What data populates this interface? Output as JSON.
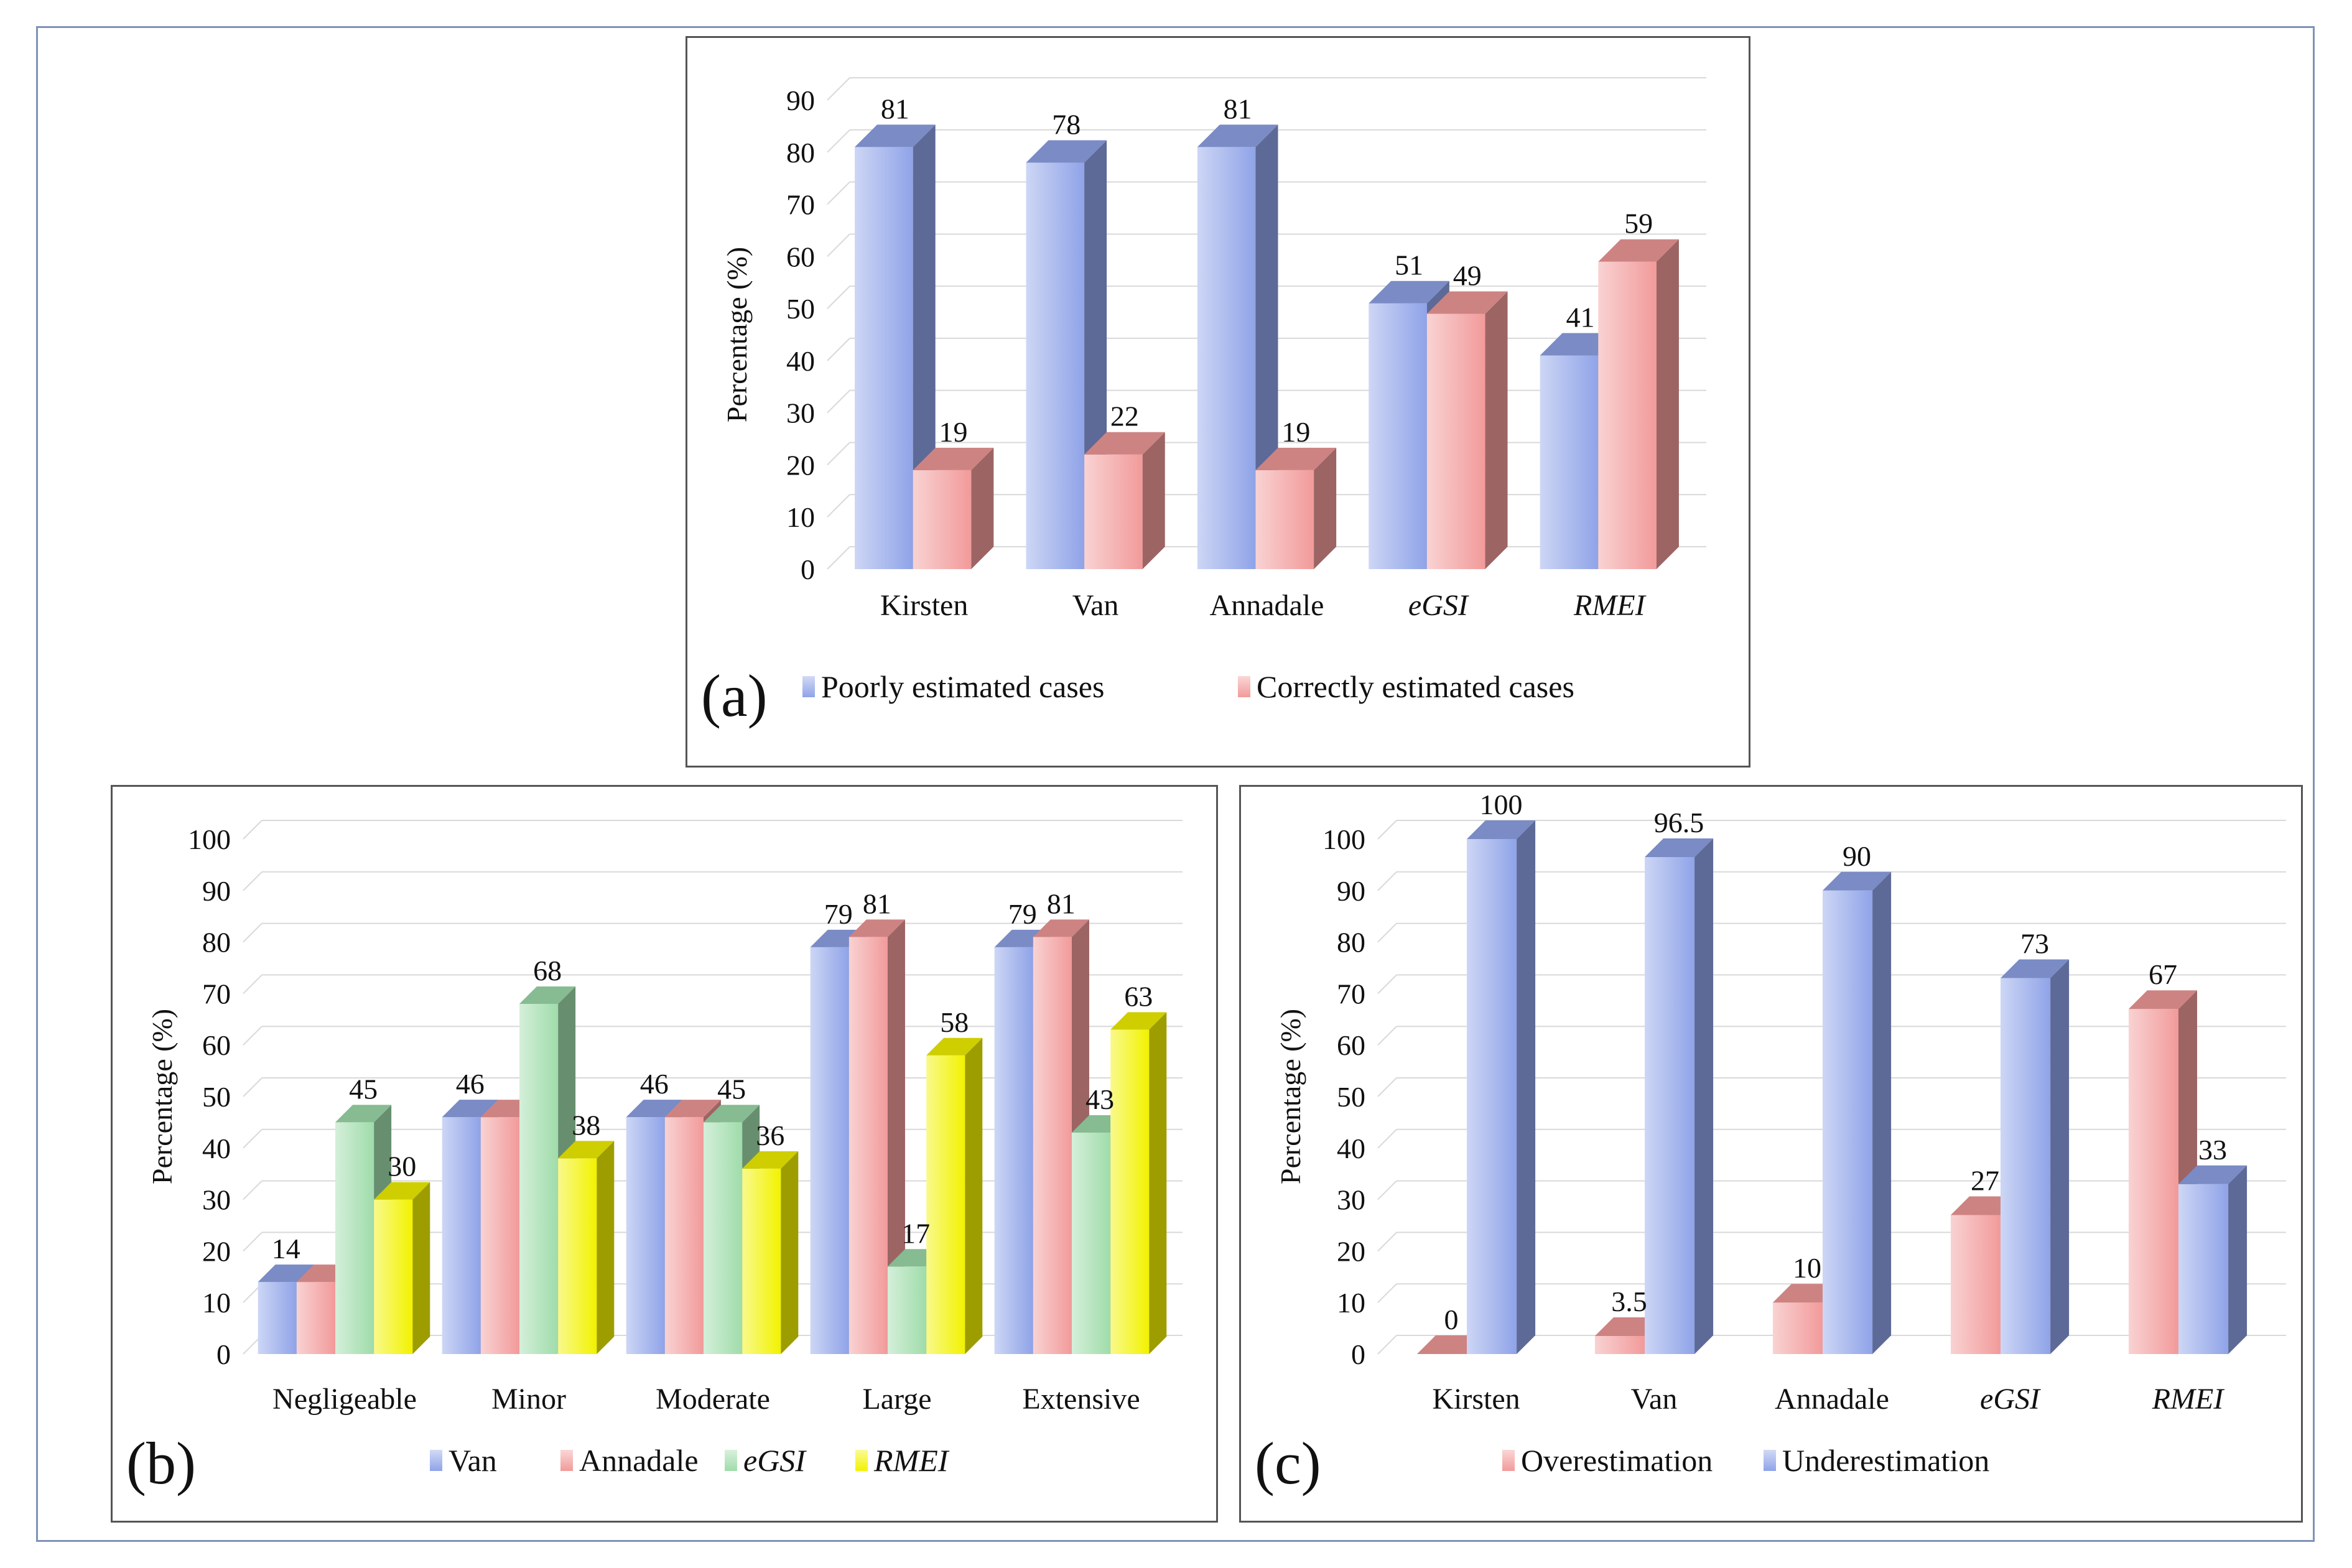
{
  "chart_data": [
    {
      "type": "bar",
      "panel_label": "(a)",
      "ylabel": "Percentage (%)",
      "ylim": [
        0,
        90
      ],
      "yticks": [
        "0",
        "10",
        "20",
        "30",
        "40",
        "50",
        "60",
        "70",
        "80",
        "90"
      ],
      "categories": [
        "Kirsten",
        "Van",
        "Annadale",
        "eGSI",
        "RMEI"
      ],
      "italic_categories": [
        false,
        false,
        false,
        true,
        true
      ],
      "series": [
        {
          "name": "Poorly estimated cases",
          "values": [
            81,
            78,
            81,
            51,
            41
          ],
          "labels": [
            "81",
            "78",
            "81",
            "51",
            "41"
          ],
          "color": "#8fa3e8"
        },
        {
          "name": "Correctly estimated cases",
          "values": [
            19,
            22,
            19,
            49,
            59
          ],
          "labels": [
            "19",
            "22",
            "19",
            "49",
            "59"
          ],
          "color": "#f29a9a"
        }
      ],
      "grid": true,
      "legend_position": "bottom"
    },
    {
      "type": "bar",
      "panel_label": "(b)",
      "ylabel": "Percentage (%)",
      "ylim": [
        0,
        100
      ],
      "yticks": [
        "0",
        "10",
        "20",
        "30",
        "40",
        "50",
        "60",
        "70",
        "80",
        "90",
        "100"
      ],
      "categories": [
        "Negligeable",
        "Minor",
        "Moderate",
        "Large",
        "Extensive"
      ],
      "italic_categories": [
        false,
        false,
        false,
        false,
        false
      ],
      "series": [
        {
          "name": "Van",
          "values": [
            14,
            46,
            46,
            79,
            79
          ],
          "labels": [
            "14",
            "46",
            "46",
            "79",
            "79"
          ],
          "color": "#8fa3e8"
        },
        {
          "name": "Annadale",
          "values": [
            14,
            46,
            46,
            81,
            81
          ],
          "labels": [
            "",
            "",
            "",
            "81",
            "81"
          ],
          "color": "#f29a9a"
        },
        {
          "name": "eGSI",
          "values": [
            45,
            68,
            45,
            17,
            43
          ],
          "labels": [
            "45",
            "68",
            "45",
            "17",
            "43"
          ],
          "color": "#9fdcaa"
        },
        {
          "name": "RMEI",
          "values": [
            30,
            38,
            36,
            58,
            63
          ],
          "labels": [
            "30",
            "38",
            "36",
            "58",
            "63"
          ],
          "color": "#f2f200"
        }
      ],
      "italic_series": [
        false,
        false,
        true,
        true
      ],
      "grid": true,
      "legend_position": "bottom"
    },
    {
      "type": "bar",
      "panel_label": "(c)",
      "ylabel": "Percentage (%)",
      "ylim": [
        0,
        100
      ],
      "yticks": [
        "0",
        "10",
        "20",
        "30",
        "40",
        "50",
        "60",
        "70",
        "80",
        "90",
        "100"
      ],
      "categories": [
        "Kirsten",
        "Van",
        "Annadale",
        "eGSI",
        "RMEI"
      ],
      "italic_categories": [
        false,
        false,
        false,
        true,
        true
      ],
      "series": [
        {
          "name": "Overestimation",
          "values": [
            0,
            3.5,
            10,
            27,
            67
          ],
          "labels": [
            "0",
            "3.5",
            "10",
            "27",
            "67"
          ],
          "color": "#f29a9a"
        },
        {
          "name": "Underestimation",
          "values": [
            100,
            96.5,
            90,
            73,
            33
          ],
          "labels": [
            "100",
            "96.5",
            "90",
            "73",
            "33"
          ],
          "color": "#8fa3e8"
        }
      ],
      "grid": true,
      "legend_position": "bottom"
    }
  ]
}
